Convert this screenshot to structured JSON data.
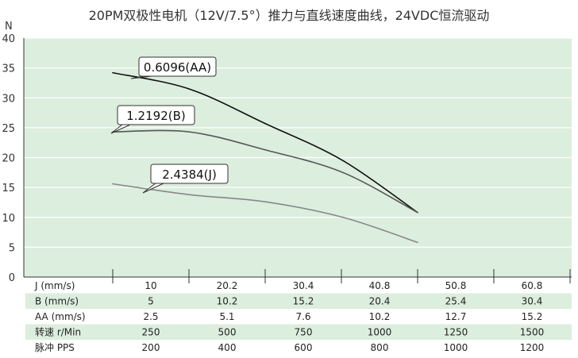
{
  "chart_data": {
    "type": "line",
    "title": "20PM双极性电机（12V/7.5°）推力与直线速度曲线，24VDC恒流驱动",
    "ylabel": "N",
    "ylim": [
      0,
      40
    ],
    "yticks": [
      0,
      5,
      10,
      15,
      20,
      25,
      30,
      35,
      40
    ],
    "grid": "horizontal",
    "series": [
      {
        "name": "0.6096(AA)",
        "color": "#111111",
        "x": [
          10,
          20.2,
          30.4,
          40.8,
          50.8
        ],
        "y": [
          34.2,
          31.5,
          25.7,
          19.5,
          10.8
        ]
      },
      {
        "name": "1.2192(B)",
        "color": "#555555",
        "x": [
          10,
          20.2,
          30.4,
          40.8,
          50.8
        ],
        "y": [
          24.3,
          24.3,
          21.3,
          17.5,
          10.8
        ]
      },
      {
        "name": "2.4384(J)",
        "color": "#888888",
        "x": [
          10,
          20.2,
          30.4,
          40.8,
          50.8
        ],
        "y": [
          15.6,
          13.8,
          12.6,
          10.0,
          5.8
        ]
      }
    ],
    "table": {
      "rows": [
        {
          "label": "J (mm/s)",
          "values": [
            "10",
            "20.2",
            "30.4",
            "40.8",
            "50.8",
            "60.8"
          ],
          "shaded": false
        },
        {
          "label": "B (mm/s)",
          "values": [
            "5",
            "10.2",
            "15.2",
            "20.4",
            "25.4",
            "30.4"
          ],
          "shaded": true
        },
        {
          "label": "AA (mm/s)",
          "values": [
            "2.5",
            "5.1",
            "7.6",
            "10.2",
            "12.7",
            "15.2"
          ],
          "shaded": false
        },
        {
          "label": "转速 r/Min",
          "values": [
            "250",
            "500",
            "750",
            "1000",
            "1250",
            "1500"
          ],
          "shaded": true
        },
        {
          "label": "脉冲 PPS",
          "values": [
            "200",
            "400",
            "600",
            "800",
            "1000",
            "1200"
          ],
          "shaded": false
        }
      ]
    },
    "colors": {
      "plot_background": "#dceedd",
      "gridline": "#ffffff",
      "row_shade": "#dceedd",
      "axis": "#333333"
    }
  }
}
